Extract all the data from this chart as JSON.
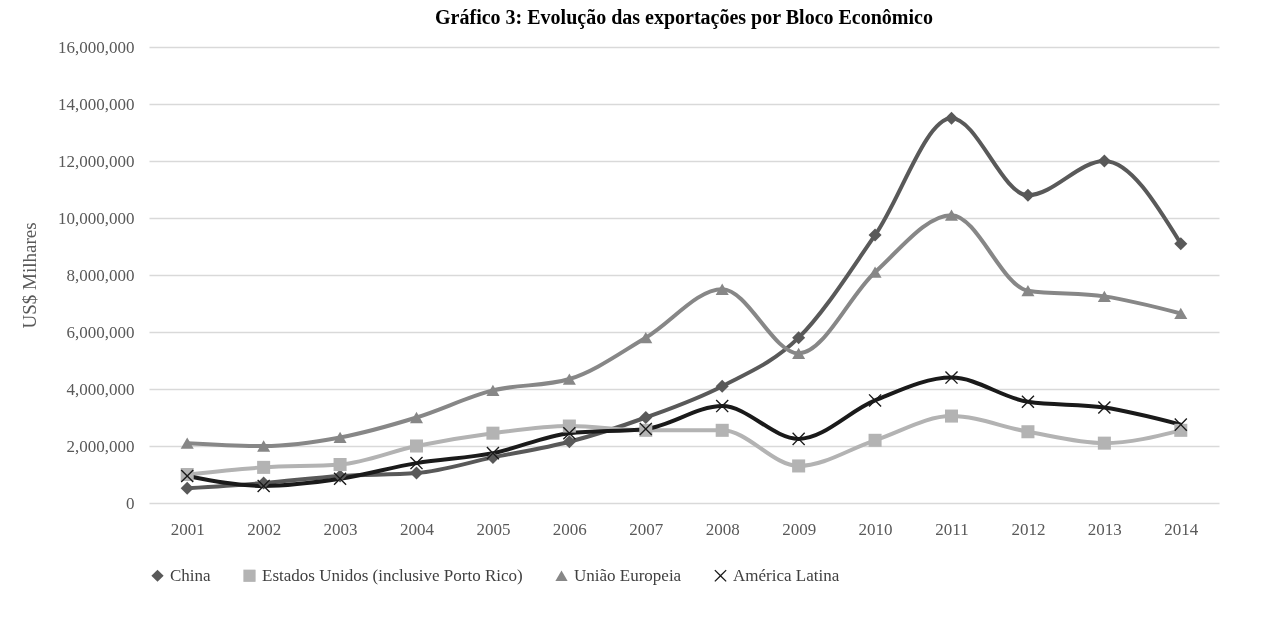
{
  "chart_data": {
    "type": "line",
    "title": "Gráfico 3: Evolução das exportações por Bloco Econômico",
    "ylabel": "US$ Milhares",
    "categories": [
      "2001",
      "2002",
      "2003",
      "2004",
      "2005",
      "2006",
      "2007",
      "2008",
      "2009",
      "2010",
      "2011",
      "2012",
      "2013",
      "2014"
    ],
    "series": [
      {
        "name": "China",
        "color": "#595959",
        "marker": "diamond",
        "values": [
          520000,
          700000,
          950000,
          1050000,
          1600000,
          2150000,
          3000000,
          4100000,
          5800000,
          9400000,
          13500000,
          10800000,
          12000000,
          9100000
        ]
      },
      {
        "name": "Estados Unidos (inclusive Porto Rico)",
        "color": "#b3b3b3",
        "marker": "square",
        "values": [
          1000000,
          1250000,
          1350000,
          2000000,
          2450000,
          2700000,
          2550000,
          2550000,
          1300000,
          2200000,
          3050000,
          2500000,
          2100000,
          2550000
        ]
      },
      {
        "name": "União Europeia",
        "color": "#878787",
        "marker": "triangle",
        "values": [
          2100000,
          2000000,
          2300000,
          3000000,
          3950000,
          4350000,
          5800000,
          7500000,
          5250000,
          8100000,
          10100000,
          7450000,
          7250000,
          6650000
        ]
      },
      {
        "name": "América Latina",
        "color": "#1a1a1a",
        "marker": "cross",
        "values": [
          950000,
          600000,
          850000,
          1400000,
          1750000,
          2450000,
          2600000,
          3400000,
          2250000,
          3600000,
          4400000,
          3550000,
          3350000,
          2750000
        ]
      }
    ],
    "ylim": [
      0,
      16000000
    ],
    "yticks": [
      0,
      {
        "value": 2000000,
        "label": "2,000,000"
      },
      {
        "value": 4000000,
        "label": "4,000,000"
      },
      {
        "value": 6000000,
        "label": "6,000,000"
      },
      {
        "value": 8000000,
        "label": "8,000,000"
      },
      {
        "value": 10000000,
        "label": "10,000,000"
      },
      {
        "value": 12000000,
        "label": "12,000,000"
      },
      {
        "value": 14000000,
        "label": "14,000,000"
      },
      {
        "value": 16000000,
        "label": "16,000,000"
      }
    ],
    "grid": "y",
    "legend": "bottom",
    "line_style": "solid"
  }
}
